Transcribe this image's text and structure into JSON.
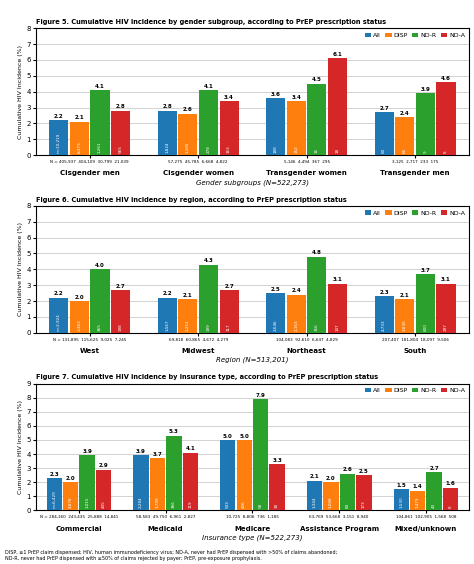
{
  "chart_data": [
    {
      "type": "bar",
      "title": "Figure 5. Cumulative HIV incidence by gender subgroup, according to PrEP prescription status",
      "xlabel": "Gender subgroups (N=522,273)",
      "ylabel": "Cumulative HIV Incidence (%)",
      "categories": [
        "Cisgender men",
        "Cisgender women",
        "Transgender women",
        "Transgender men"
      ],
      "series": [
        {
          "name": "All",
          "values": [
            2.2,
            2.8,
            3.6,
            2.7
          ],
          "n_labels": [
            "n=10,219",
            "1,824",
            "188",
            "83"
          ]
        },
        {
          "name": "DISP",
          "values": [
            2.1,
            2.6,
            3.4,
            2.4
          ],
          "n_labels": [
            "8,373",
            "1,185",
            "152",
            "66"
          ]
        },
        {
          "name": "ND-R",
          "values": [
            4.1,
            4.1,
            4.5,
            3.9
          ],
          "n_labels": [
            "1,261",
            "278",
            "16",
            "9"
          ]
        },
        {
          "name": "ND-A",
          "values": [
            2.8,
            3.4,
            6.1,
            4.6
          ],
          "n_labels": [
            "565",
            "163",
            "18",
            "8"
          ]
        }
      ],
      "N_labels": [
        "N = 405,937  404,109  30,799  21,039",
        "57,275  45,785  6,668  4,822",
        "5,146  4,494  367  295",
        "3,125  2,717  233  175"
      ],
      "ylim": [
        0,
        8
      ],
      "yticks": [
        0,
        1,
        2,
        3,
        4,
        5,
        6,
        7,
        8
      ],
      "grid": true,
      "legend": "upper right",
      "data_labels": true
    },
    {
      "type": "bar",
      "title": "Figure 6. Cumulative HIV incidence by region, according to PrEP prescription status",
      "xlabel": "Region (N=513,201)",
      "ylabel": "Cumulative HIV Incidence (%)",
      "categories": [
        "West",
        "Midwest",
        "Northeast",
        "South"
      ],
      "series": [
        {
          "name": "All",
          "values": [
            2.2,
            2.2,
            2.5,
            2.3
          ],
          "n_labels": [
            "n=2,924",
            "1,567",
            "2,646",
            "4,733"
          ]
        },
        {
          "name": "DISP",
          "values": [
            2.0,
            2.1,
            2.4,
            2.1
          ],
          "n_labels": [
            "2,363",
            "1,251",
            "2,163",
            "3,836"
          ]
        },
        {
          "name": "ND-R",
          "values": [
            4.0,
            4.3,
            4.8,
            3.7
          ],
          "n_labels": [
            "365",
            "199",
            "316",
            "600"
          ]
        },
        {
          "name": "ND-A",
          "values": [
            2.7,
            2.7,
            3.1,
            3.1
          ],
          "n_labels": [
            "198",
            "117",
            "147",
            "297"
          ]
        }
      ],
      "N_labels": [
        "N = 131,895  115,625  9,025  7,245",
        "69,818  60,865  4,672  4,279",
        "104,083  92,610  6,647  4,829",
        "207,407  181,804  18,097  9,506"
      ],
      "ylim": [
        0,
        8
      ],
      "yticks": [
        0,
        1,
        2,
        3,
        4,
        5,
        6,
        7,
        8
      ],
      "grid": true,
      "legend": "upper right",
      "data_labels": true
    },
    {
      "type": "bar",
      "title": "Figure 7. Cumulative HIV incidence by insurance type, according to PrEP prescription status",
      "xlabel": "Insurance type (N=522,273)",
      "ylabel": "Cumulative HIV Incidence (%)",
      "categories": [
        "Commercial",
        "Medicaid",
        "Medicare",
        "Assistance Program",
        "Mixed/unknown"
      ],
      "series": [
        {
          "name": "All",
          "values": [
            2.3,
            3.9,
            5.0,
            2.1,
            1.5
          ],
          "n_labels": [
            "n=6,429",
            "2,284",
            "533",
            "1,344",
            "1,530"
          ]
        },
        {
          "name": "DISP",
          "values": [
            2.0,
            3.7,
            5.0,
            2.0,
            1.4
          ],
          "n_labels": [
            "4,878",
            "1,799",
            "436",
            "1,088",
            "1,479"
          ]
        },
        {
          "name": "ND-R",
          "values": [
            3.9,
            5.3,
            7.9,
            2.6,
            2.7
          ],
          "n_labels": [
            "1,015",
            "366",
            "58",
            "83",
            "43"
          ]
        },
        {
          "name": "ND-A",
          "values": [
            2.9,
            4.1,
            3.3,
            2.5,
            1.6
          ],
          "n_labels": [
            "435",
            "119",
            "30",
            "173",
            "8"
          ]
        }
      ],
      "N_labels": [
        "N = 284,160  243,435  25,888  14,841",
        "58,583  49,750  6,961  2,827",
        "10,725  8,806  736  1,185",
        "63,769  53,668  3,151  8,940",
        "104,861  102,905  1,568  508"
      ],
      "ylim": [
        0,
        9
      ],
      "yticks": [
        0,
        1,
        2,
        3,
        4,
        5,
        6,
        7,
        8,
        9
      ],
      "grid": true,
      "legend": "upper right",
      "data_labels": true
    }
  ],
  "footnote": "DISP, ≥1 PrEP claim dispensed; HIV, human immunodeficiency virus; ND-A, never had PrEP dispensed with >50% of claims abandoned;\nND-R, never had PrEP dispensed with ≥50% of claims rejected by payer; PrEP, pre-exposure prophylaxis."
}
